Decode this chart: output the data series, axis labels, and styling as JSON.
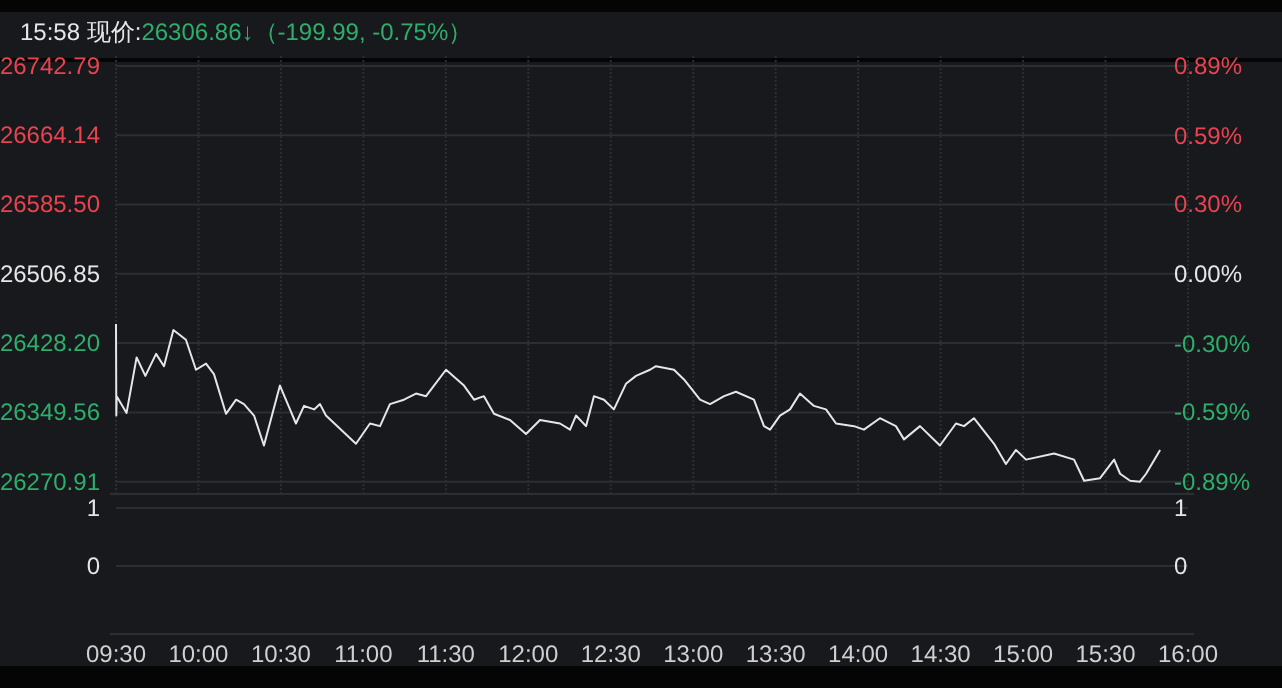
{
  "chart_data": [
    {
      "type": "line",
      "title": "15:58 现价:",
      "subtitle": "26306.86↓（-199.99, -0.75%）",
      "xlim": [
        9.5,
        16
      ],
      "ylim": [
        26257,
        26754
      ],
      "yticks": [
        26270.91,
        26349.56,
        {
          "value": 26428.2,
          "label": "26428.20"
        },
        26506.85,
        {
          "value": 26585.5,
          "label": "26585.50"
        },
        26664.14,
        26742.79
      ],
      "y2lim": [
        -0.943,
        0.932
      ],
      "y2ticks": [
        {
          "value": -0.89,
          "label": "-0.89%"
        },
        {
          "value": -0.59,
          "label": "-0.59%"
        },
        {
          "value": -0.3,
          "label": "-0.30%"
        },
        {
          "value": 0,
          "label": "0.00%"
        },
        {
          "value": 0.3,
          "label": "0.30%"
        },
        {
          "value": 0.59,
          "label": "0.59%"
        },
        {
          "value": 0.89,
          "label": "0.89%"
        }
      ],
      "xticks": [
        {
          "value": 9.5,
          "label": "09:30"
        },
        {
          "value": 10,
          "label": "10:00"
        },
        {
          "value": 10.5,
          "label": "10:30"
        },
        {
          "value": 11,
          "label": "11:00"
        },
        {
          "value": 11.5,
          "label": "11:30"
        },
        {
          "value": 12,
          "label": "12:00"
        },
        {
          "value": 12.5,
          "label": "12:30"
        },
        {
          "value": 13,
          "label": "13:00"
        },
        {
          "value": 13.5,
          "label": "13:30"
        },
        {
          "value": 14,
          "label": "14:00"
        },
        {
          "value": 14.5,
          "label": "14:30"
        },
        {
          "value": 15,
          "label": "15:00"
        },
        {
          "value": 15.5,
          "label": "15:30"
        },
        {
          "value": 16,
          "label": "16:00"
        }
      ],
      "grid": true,
      "series": [
        {
          "color": "#e6e6e6",
          "x": [
            9.5,
            9.502,
            9.504,
            9.564,
            9.625,
            9.678,
            9.743,
            9.791,
            9.848,
            9.924,
            9.985,
            10.046,
            10.094,
            10.167,
            10.228,
            10.276,
            10.337,
            10.397,
            10.494,
            10.555,
            10.591,
            10.64,
            10.701,
            10.737,
            10.773,
            10.955,
            11.04,
            11.101,
            11.161,
            11.246,
            11.319,
            11.38,
            11.428,
            11.501,
            11.61,
            11.671,
            11.731,
            11.792,
            11.889,
            11.986,
            12.071,
            12.192,
            12.253,
            12.289,
            12.35,
            12.398,
            12.459,
            12.519,
            12.592,
            12.653,
            12.738,
            12.774,
            12.883,
            12.944,
            13.041,
            13.102,
            13.187,
            13.259,
            13.368,
            13.429,
            13.466,
            13.526,
            13.587,
            13.647,
            13.732,
            13.805,
            13.866,
            13.975,
            14.035,
            14.132,
            14.229,
            14.278,
            14.375,
            14.496,
            14.593,
            14.642,
            14.702,
            14.824,
            14.896,
            14.957,
            15.018,
            15.188,
            15.309,
            15.37,
            15.467,
            15.552,
            15.588,
            15.649,
            15.709,
            15.746,
            15.831
          ],
          "values": [
            26450,
            26346,
            26368,
            26349,
            26412,
            26391,
            26416,
            26402,
            26443,
            26432,
            26398,
            26405,
            26393,
            26348,
            26364,
            26359,
            26346,
            26312,
            26380,
            26353,
            26337,
            26357,
            26353,
            26359,
            26346,
            26314,
            26337,
            26334,
            26359,
            26364,
            26371,
            26368,
            26380,
            26398,
            26380,
            26364,
            26368,
            26348,
            26341,
            26325,
            26341,
            26337,
            26330,
            26346,
            26334,
            26368,
            26364,
            26353,
            26382,
            26391,
            26398,
            26402,
            26398,
            26387,
            26364,
            26359,
            26368,
            26373,
            26364,
            26334,
            26330,
            26346,
            26353,
            26371,
            26357,
            26353,
            26337,
            26334,
            26330,
            26343,
            26334,
            26319,
            26334,
            26312,
            26337,
            26334,
            26343,
            26314,
            26291,
            26307,
            26296,
            26303,
            26296,
            26272,
            26275,
            26296,
            26280,
            26272,
            26271,
            26280,
            26307
          ]
        }
      ]
    },
    {
      "type": "other",
      "annotations": [
        "1",
        "0",
        "1",
        "0"
      ]
    }
  ]
}
